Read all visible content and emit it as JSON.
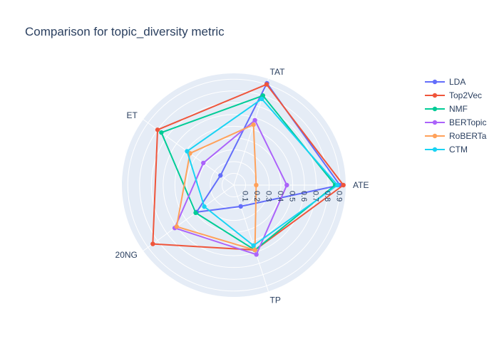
{
  "chart_data": {
    "type": "radar",
    "title": "Comparison for topic_diversity metric",
    "axes": [
      "ATE",
      "TAT",
      "ET",
      "20NG",
      "TP"
    ],
    "radial_range": [
      0,
      0.95
    ],
    "radial_ticks": [
      "0.1",
      "0.2",
      "0.3",
      "0.4",
      "0.5",
      "0.6",
      "0.7",
      "0.8",
      "0.9"
    ],
    "grid": true,
    "legend_position": "right",
    "series": [
      {
        "name": "LDA",
        "color": "#636efa",
        "values": [
          0.9,
          0.91,
          0.14,
          0.39,
          0.19
        ]
      },
      {
        "name": "Top2Vec",
        "color": "#ef553b",
        "values": [
          0.93,
          0.9,
          0.8,
          0.85,
          0.58
        ]
      },
      {
        "name": "NMF",
        "color": "#00cc96",
        "values": [
          0.86,
          0.8,
          0.76,
          0.4,
          0.58
        ]
      },
      {
        "name": "BERTopic",
        "color": "#ab63fa",
        "values": [
          0.45,
          0.58,
          0.32,
          0.62,
          0.62
        ]
      },
      {
        "name": "RoBERTa",
        "color": "#ffa15a",
        "values": [
          0.19,
          0.54,
          0.46,
          0.6,
          0.58
        ]
      },
      {
        "name": "CTM",
        "color": "#19d3f3",
        "values": [
          0.88,
          0.77,
          0.49,
          0.31,
          0.54
        ]
      }
    ]
  }
}
